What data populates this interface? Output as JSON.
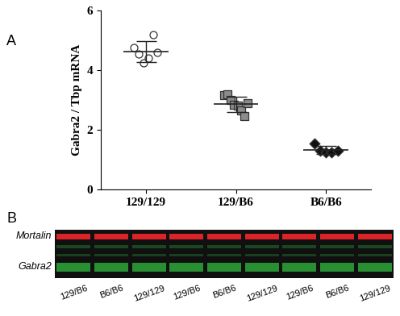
{
  "chart_data": {
    "type": "scatter",
    "title": "A",
    "y_label": "Gabra2 / Tbp mRNA",
    "categories": [
      "129/129",
      "129/B6",
      "B6/B6"
    ],
    "points": [
      [
        4.75,
        4.55,
        4.25,
        4.4,
        5.2,
        4.6
      ],
      [
        3.15,
        3.2,
        3.0,
        2.85,
        2.8,
        2.65,
        2.45,
        2.9
      ],
      [
        1.55,
        1.3,
        1.25,
        1.25,
        1.3
      ]
    ],
    "means": [
      4.62,
      2.86,
      1.33
    ],
    "sd": [
      0.36,
      0.26,
      0.13
    ],
    "colors": [
      "#ffffff",
      "#8c8c8c",
      "#111111"
    ],
    "markers": [
      "circle",
      "square",
      "diamond"
    ],
    "ylim": [
      0,
      6
    ],
    "yticks": [
      0,
      2,
      4,
      6
    ],
    "grid": false
  },
  "blot": {
    "title": "B",
    "bands": [
      "Mortalin",
      "Gabra2"
    ],
    "colors": [
      "#e8262a",
      "#2fb03c"
    ],
    "lanes": [
      "129/B6",
      "B6/B6",
      "129/129",
      "129/B6",
      "B6/B6",
      "129/129",
      "129/B6",
      "B6/B6",
      "129/129"
    ]
  }
}
